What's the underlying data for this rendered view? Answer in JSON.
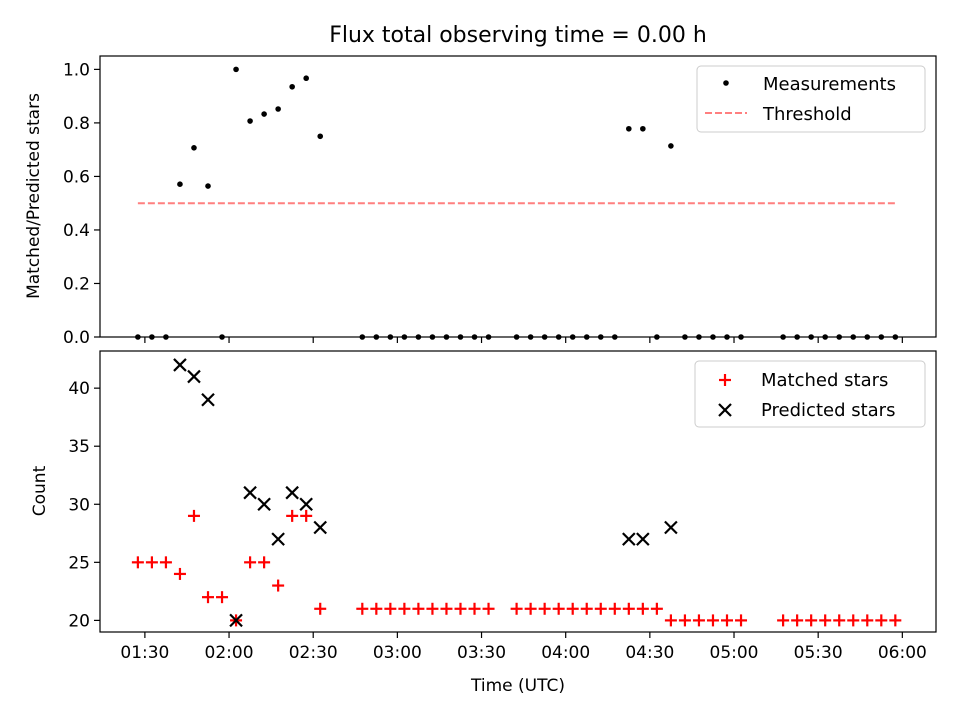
{
  "chart_data": {
    "type": "scatter",
    "title": "Flux total observing time = 0.00 h",
    "xlabel": "Time (UTC)",
    "x_ticks": [
      "01:30",
      "02:00",
      "02:30",
      "03:00",
      "03:30",
      "04:00",
      "04:30",
      "05:00",
      "05:30",
      "06:00"
    ],
    "x_tick_minutes": [
      90,
      120,
      150,
      180,
      210,
      240,
      270,
      300,
      330,
      360
    ],
    "xlim_minutes": [
      74,
      372
    ],
    "panels": [
      {
        "ylabel": "Matched/Predicted stars",
        "ylim": [
          0,
          1.05
        ],
        "y_ticks": [
          "0.0",
          "0.2",
          "0.4",
          "0.6",
          "0.8",
          "1.0"
        ],
        "y_tick_values": [
          0,
          0.2,
          0.4,
          0.6,
          0.8,
          1.0
        ],
        "legend_position": "top-right",
        "threshold": {
          "name": "Threshold",
          "value": 0.5,
          "x_start": 87.5,
          "x_end": 357.5,
          "color": "#ff7f7f"
        },
        "series": [
          {
            "name": "Measurements",
            "marker": "dot",
            "color": "#000000",
            "points": [
              [
                87.5,
                0
              ],
              [
                92.5,
                0
              ],
              [
                97.5,
                0
              ],
              [
                102.5,
                0.571
              ],
              [
                107.5,
                0.707
              ],
              [
                112.5,
                0.564
              ],
              [
                117.5,
                0
              ],
              [
                122.5,
                1.0
              ],
              [
                127.5,
                0.807
              ],
              [
                132.5,
                0.833
              ],
              [
                137.5,
                0.852
              ],
              [
                142.5,
                0.935
              ],
              [
                147.5,
                0.967
              ],
              [
                152.5,
                0.75
              ],
              [
                167.5,
                0
              ],
              [
                172.5,
                0
              ],
              [
                177.5,
                0
              ],
              [
                182.5,
                0
              ],
              [
                187.5,
                0
              ],
              [
                192.5,
                0
              ],
              [
                197.5,
                0
              ],
              [
                202.5,
                0
              ],
              [
                207.5,
                0
              ],
              [
                212.5,
                0
              ],
              [
                222.5,
                0
              ],
              [
                227.5,
                0
              ],
              [
                232.5,
                0
              ],
              [
                237.5,
                0
              ],
              [
                242.5,
                0
              ],
              [
                247.5,
                0
              ],
              [
                252.5,
                0
              ],
              [
                257.5,
                0
              ],
              [
                262.5,
                0.778
              ],
              [
                267.5,
                0.778
              ],
              [
                272.5,
                0
              ],
              [
                277.5,
                0.714
              ],
              [
                282.5,
                0
              ],
              [
                287.5,
                0
              ],
              [
                292.5,
                0
              ],
              [
                297.5,
                0
              ],
              [
                302.5,
                0
              ],
              [
                317.5,
                0
              ],
              [
                322.5,
                0
              ],
              [
                327.5,
                0
              ],
              [
                332.5,
                0
              ],
              [
                337.5,
                0
              ],
              [
                342.5,
                0
              ],
              [
                347.5,
                0
              ],
              [
                352.5,
                0
              ],
              [
                357.5,
                0
              ]
            ]
          }
        ]
      },
      {
        "ylabel": "Count",
        "ylim": [
          19,
          43.2
        ],
        "y_ticks": [
          "20",
          "25",
          "30",
          "35",
          "40"
        ],
        "y_tick_values": [
          20,
          25,
          30,
          35,
          40
        ],
        "legend_position": "top-right",
        "series": [
          {
            "name": "Matched stars",
            "marker": "plus",
            "color": "#ff0000",
            "points": [
              [
                87.5,
                25
              ],
              [
                92.5,
                25
              ],
              [
                97.5,
                25
              ],
              [
                102.5,
                24
              ],
              [
                107.5,
                29
              ],
              [
                112.5,
                22
              ],
              [
                117.5,
                22
              ],
              [
                122.5,
                20
              ],
              [
                127.5,
                25
              ],
              [
                132.5,
                25
              ],
              [
                137.5,
                23
              ],
              [
                142.5,
                29
              ],
              [
                147.5,
                29
              ],
              [
                152.5,
                21
              ],
              [
                167.5,
                21
              ],
              [
                172.5,
                21
              ],
              [
                177.5,
                21
              ],
              [
                182.5,
                21
              ],
              [
                187.5,
                21
              ],
              [
                192.5,
                21
              ],
              [
                197.5,
                21
              ],
              [
                202.5,
                21
              ],
              [
                207.5,
                21
              ],
              [
                212.5,
                21
              ],
              [
                222.5,
                21
              ],
              [
                227.5,
                21
              ],
              [
                232.5,
                21
              ],
              [
                237.5,
                21
              ],
              [
                242.5,
                21
              ],
              [
                247.5,
                21
              ],
              [
                252.5,
                21
              ],
              [
                257.5,
                21
              ],
              [
                262.5,
                21
              ],
              [
                267.5,
                21
              ],
              [
                272.5,
                21
              ],
              [
                277.5,
                20
              ],
              [
                282.5,
                20
              ],
              [
                287.5,
                20
              ],
              [
                292.5,
                20
              ],
              [
                297.5,
                20
              ],
              [
                302.5,
                20
              ],
              [
                317.5,
                20
              ],
              [
                322.5,
                20
              ],
              [
                327.5,
                20
              ],
              [
                332.5,
                20
              ],
              [
                337.5,
                20
              ],
              [
                342.5,
                20
              ],
              [
                347.5,
                20
              ],
              [
                352.5,
                20
              ],
              [
                357.5,
                20
              ]
            ]
          },
          {
            "name": "Predicted stars",
            "marker": "x",
            "color": "#000000",
            "points": [
              [
                102.5,
                42
              ],
              [
                107.5,
                41
              ],
              [
                112.5,
                39
              ],
              [
                122.5,
                20
              ],
              [
                127.5,
                31
              ],
              [
                132.5,
                30
              ],
              [
                137.5,
                27
              ],
              [
                142.5,
                31
              ],
              [
                147.5,
                30
              ],
              [
                152.5,
                28
              ],
              [
                262.5,
                27
              ],
              [
                267.5,
                27
              ],
              [
                277.5,
                28
              ]
            ]
          }
        ]
      }
    ]
  }
}
